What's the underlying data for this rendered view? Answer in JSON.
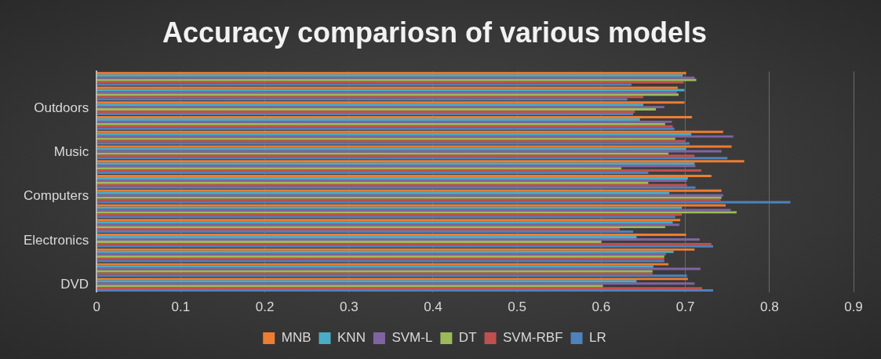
{
  "chart_data": {
    "type": "bar",
    "orientation": "horizontal",
    "title": "Accuracy compariosn of various models",
    "categories": [
      null,
      null,
      "Outdoors",
      null,
      null,
      "Music",
      null,
      null,
      "Computers",
      null,
      null,
      "Electronics",
      null,
      null,
      "DVD"
    ],
    "series": [
      {
        "name": "MNB",
        "color": "#ed7d31",
        "values": [
          0.701,
          0.691,
          0.699,
          0.708,
          0.745,
          0.755,
          0.77,
          0.731,
          0.743,
          0.748,
          0.694,
          0.701,
          0.711,
          0.68,
          0.703
        ]
      },
      {
        "name": "KNN",
        "color": "#4bacc6",
        "values": [
          0.697,
          0.699,
          0.65,
          0.646,
          0.707,
          0.701,
          0.711,
          0.703,
          0.681,
          0.696,
          0.685,
          0.642,
          0.686,
          0.662,
          0.642
        ]
      },
      {
        "name": "SVM-L",
        "color": "#8064a2",
        "values": [
          0.711,
          0.69,
          0.675,
          0.684,
          0.757,
          0.743,
          0.712,
          0.702,
          0.745,
          0.754,
          0.693,
          0.717,
          0.677,
          0.718,
          0.711
        ]
      },
      {
        "name": "DT",
        "color": "#9bbb59",
        "values": [
          0.713,
          0.692,
          0.665,
          0.676,
          0.688,
          0.68,
          0.624,
          0.656,
          0.743,
          0.761,
          0.676,
          0.6,
          0.675,
          0.661,
          0.602
        ]
      },
      {
        "name": "SVM-RBF",
        "color": "#c0504d",
        "values": [
          0.698,
          0.65,
          0.64,
          0.685,
          0.7,
          0.711,
          0.719,
          0.702,
          0.742,
          0.696,
          0.622,
          0.731,
          0.675,
          0.661,
          0.72
        ]
      },
      {
        "name": "LR",
        "color": "#4f81bd",
        "values": [
          0.636,
          0.631,
          0.638,
          0.687,
          0.705,
          0.75,
          0.656,
          0.712,
          0.825,
          0.688,
          0.638,
          0.733,
          0.675,
          0.702,
          0.733
        ]
      }
    ],
    "xlim": [
      0,
      0.9
    ],
    "xticks": [
      0,
      0.1,
      0.2,
      0.3,
      0.4,
      0.5,
      0.6,
      0.7,
      0.8,
      0.9
    ],
    "grid": "x",
    "legend": "bottom"
  }
}
